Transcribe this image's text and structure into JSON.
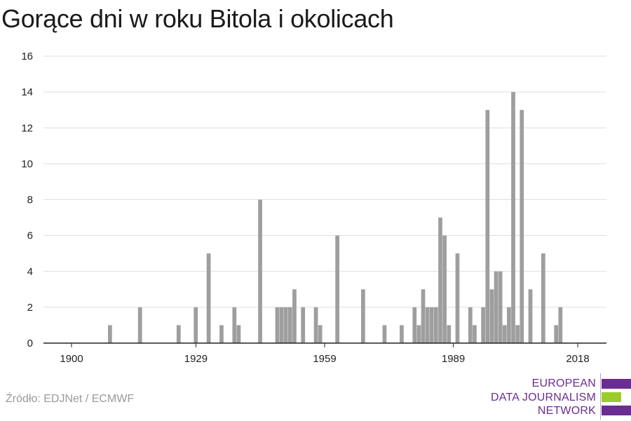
{
  "title": "Gorące dni w roku Bitola i okolicach",
  "source": "Źródło: EDJNet / ECMWF",
  "logo": {
    "lines": [
      "EUROPEAN",
      "DATA JOURNALISM",
      "NETWORK"
    ],
    "colors": {
      "purple": "#6b2c91",
      "green": "#9ccc2a"
    }
  },
  "colors": {
    "bar": "#9e9e9e",
    "grid": "#dddddd",
    "axis": "#222222",
    "tick_text": "#222222"
  },
  "chart_data": {
    "type": "bar",
    "title": "Gorące dni w roku Bitola i okolicach",
    "xlabel": "",
    "ylabel": "",
    "xlim": [
      1900,
      2018
    ],
    "ylim": [
      0,
      16
    ],
    "x_ticks": [
      1900,
      1929,
      1959,
      1989,
      2018
    ],
    "y_ticks": [
      0,
      2,
      4,
      6,
      8,
      10,
      12,
      14,
      16
    ],
    "grid": true,
    "years": [
      1909,
      1916,
      1925,
      1929,
      1932,
      1935,
      1938,
      1939,
      1944,
      1948,
      1949,
      1950,
      1951,
      1952,
      1954,
      1957,
      1958,
      1962,
      1968,
      1973,
      1977,
      1980,
      1981,
      1982,
      1983,
      1984,
      1985,
      1986,
      1987,
      1988,
      1990,
      1993,
      1994,
      1996,
      1997,
      1998,
      1999,
      2000,
      2001,
      2002,
      2003,
      2004,
      2005,
      2007,
      2010,
      2013,
      2014,
      2015
    ],
    "values": [
      1,
      2,
      1,
      2,
      5,
      1,
      2,
      1,
      8,
      2,
      2,
      2,
      2,
      3,
      2,
      2,
      1,
      6,
      3,
      1,
      1,
      2,
      1,
      3,
      2,
      2,
      2,
      7,
      6,
      1,
      5,
      2,
      1,
      2,
      13,
      3,
      4,
      4,
      1,
      2,
      14,
      1,
      13,
      3,
      5,
      1,
      2,
      0
    ]
  }
}
